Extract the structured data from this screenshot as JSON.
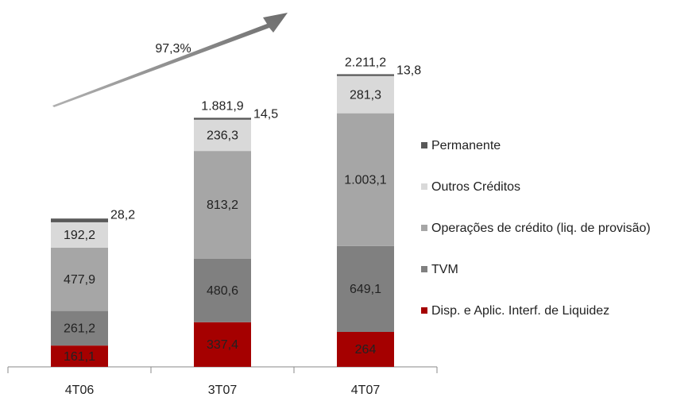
{
  "chart_data": {
    "type": "stacked_bar",
    "categories": [
      "4T06",
      "3T07",
      "4T07"
    ],
    "series": [
      {
        "name": "Disp. e Aplic. Interf. de Liquidez",
        "color": "#a50000",
        "values": [
          161.1,
          337.4,
          264
        ],
        "value_labels": [
          "161,1",
          "337,4",
          "264"
        ]
      },
      {
        "name": "TVM",
        "color": "#808080",
        "values": [
          261.2,
          480.6,
          649.1
        ],
        "value_labels": [
          "261,2",
          "480,6",
          "649,1"
        ]
      },
      {
        "name": "Operações de crédito (liq. de provisão)",
        "color": "#a6a6a6",
        "values": [
          477.9,
          813.2,
          1003.1
        ],
        "value_labels": [
          "477,9",
          "813,2",
          "1.003,1"
        ]
      },
      {
        "name": "Outros Créditos",
        "color": "#d9d9d9",
        "values": [
          192.2,
          236.3,
          281.3
        ],
        "value_labels": [
          "192,2",
          "236,3",
          "281,3"
        ]
      },
      {
        "name": "Permanente",
        "color": "#595959",
        "values": [
          28.2,
          14.5,
          13.8
        ],
        "value_labels": [
          "28,2",
          "14,5",
          "13,8"
        ]
      }
    ],
    "totals": [
      null,
      1881.9,
      2211.2
    ],
    "total_labels": [
      null,
      "1.881,9",
      "2.211,2"
    ],
    "annotation": "97,3%",
    "ylim": [
      0,
      2400
    ]
  }
}
